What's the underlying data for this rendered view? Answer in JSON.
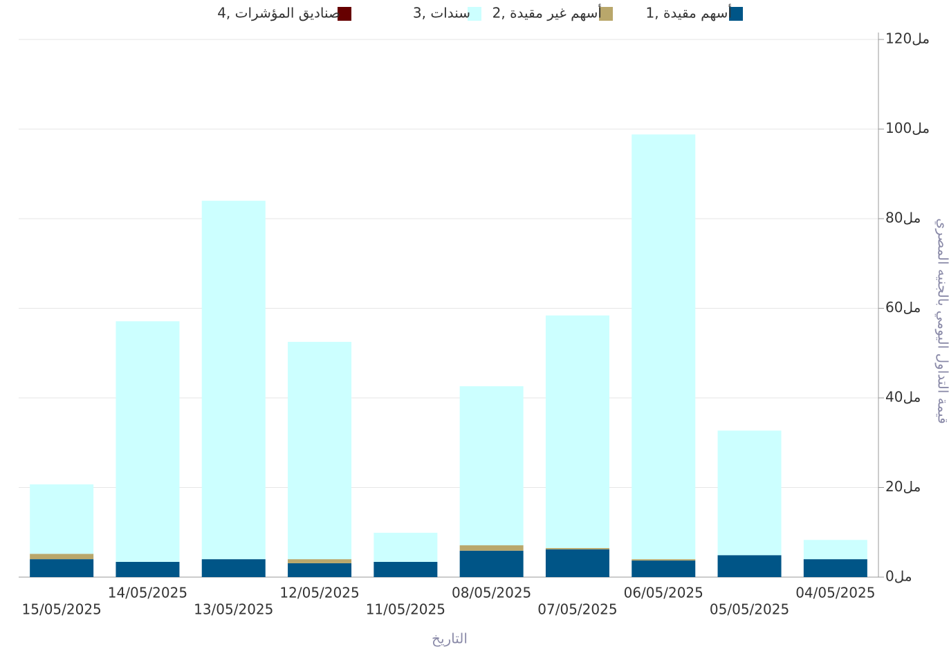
{
  "chart_data": {
    "type": "bar",
    "stacked": true,
    "x_label": "التاريخ",
    "y_label": "قيمة التداول اليومي بالجنيه المصري",
    "categories": [
      "15/05/2025",
      "14/05/2025",
      "13/05/2025",
      "12/05/2025",
      "11/05/2025",
      "08/05/2025",
      "07/05/2025",
      "06/05/2025",
      "05/05/2025",
      "04/05/2025"
    ],
    "series": [
      {
        "name": "1, أسهم مقيدة",
        "color": "#005587",
        "values": [
          4.0,
          3.4,
          4.0,
          3.1,
          3.4,
          5.9,
          6.2,
          3.7,
          4.9,
          4.0
        ]
      },
      {
        "name": "2, أسهم غير مقيدة",
        "color": "#b9a76b",
        "values": [
          1.2,
          0,
          0,
          0.9,
          0,
          1.2,
          0.3,
          0.3,
          0,
          0
        ]
      },
      {
        "name": "3, سندات",
        "color": "#ccffff",
        "values": [
          15.5,
          53.7,
          80.0,
          48.5,
          6.5,
          35.5,
          51.9,
          94.8,
          27.8,
          4.3
        ]
      },
      {
        "name": "4, صناديق المؤشرات",
        "color": "#660000",
        "values": [
          0,
          0,
          0,
          0,
          0,
          0,
          0,
          0,
          0,
          0
        ]
      }
    ],
    "ylim": [
      0,
      120
    ],
    "yticks": [
      {
        "value": 0,
        "label": "0مل"
      },
      {
        "value": 20,
        "label": "20مل"
      },
      {
        "value": 40,
        "label": "40مل"
      },
      {
        "value": 60,
        "label": "60مل"
      },
      {
        "value": 80,
        "label": "80مل"
      },
      {
        "value": 100,
        "label": "100مل"
      },
      {
        "value": 120,
        "label": "120مل"
      }
    ],
    "y_axis_side": "right",
    "grid": true,
    "legend": "top"
  }
}
